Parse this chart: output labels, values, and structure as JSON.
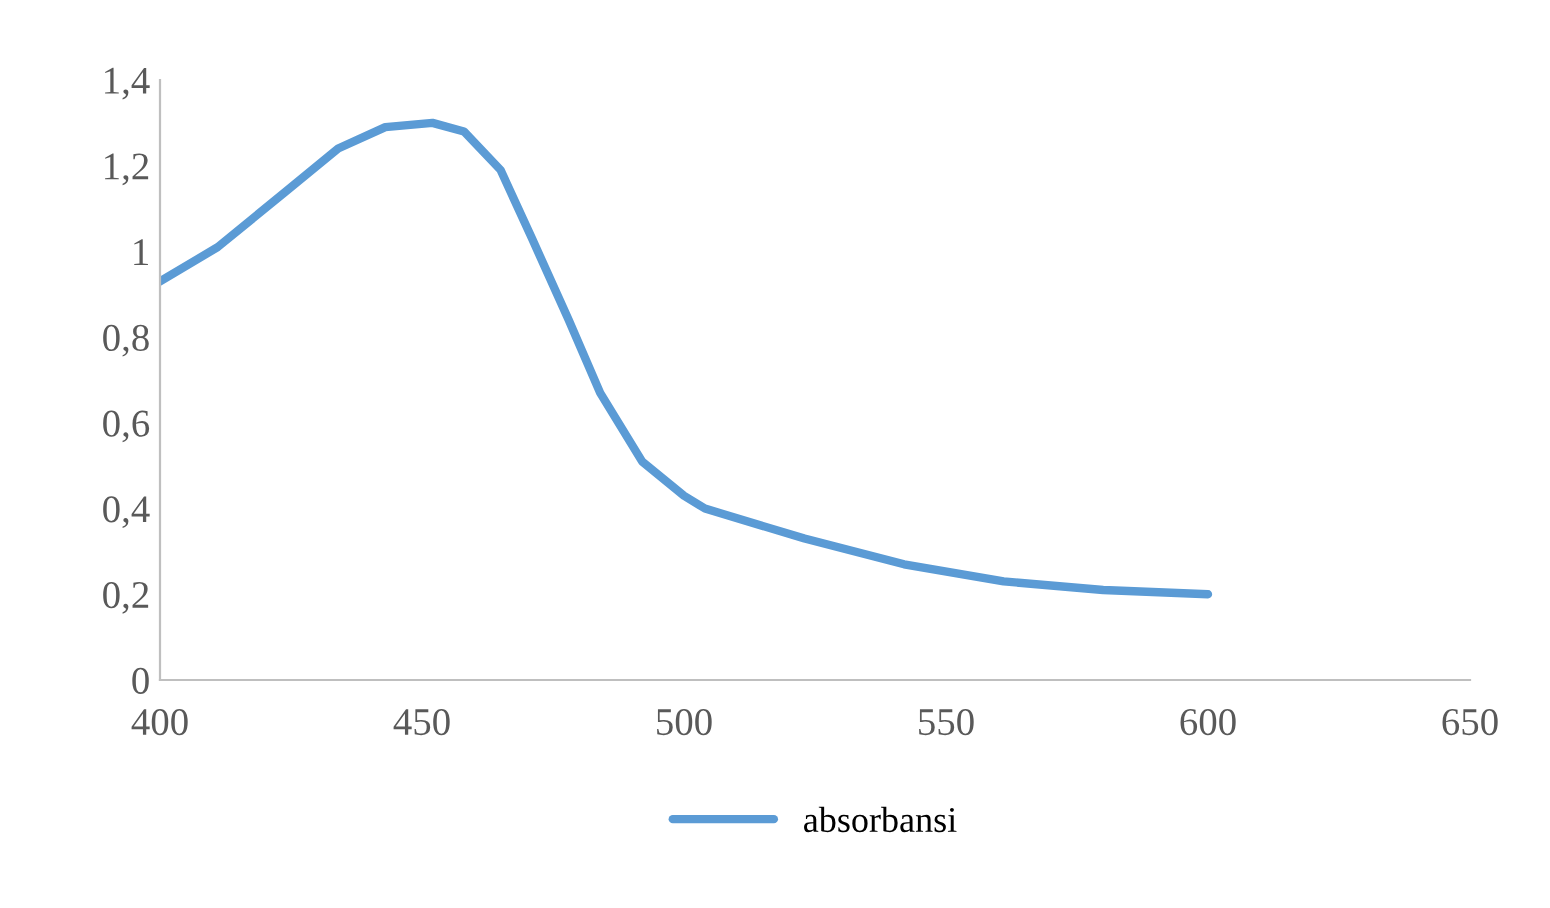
{
  "chart_data": {
    "type": "line",
    "x": [
      400,
      411,
      424,
      434,
      443,
      452,
      458,
      465,
      471,
      478,
      484,
      492,
      500,
      504,
      523,
      542,
      561,
      580,
      600
    ],
    "series": [
      {
        "name": "absorbansi",
        "color": "#5b9bd5",
        "values": [
          0.93,
          1.01,
          1.14,
          1.24,
          1.29,
          1.3,
          1.28,
          1.19,
          1.03,
          0.84,
          0.67,
          0.51,
          0.43,
          0.4,
          0.33,
          0.27,
          0.23,
          0.21,
          0.2
        ]
      }
    ],
    "xlim": [
      400,
      650
    ],
    "xticks": [
      400,
      450,
      500,
      550,
      600,
      650
    ],
    "ylim": [
      0,
      1.4
    ],
    "yticks": [
      {
        "value": 0,
        "label": "0"
      },
      {
        "value": 0.2,
        "label": "0,2"
      },
      {
        "value": 0.4,
        "label": "0,4"
      },
      {
        "value": 0.6,
        "label": "0,6"
      },
      {
        "value": 0.8,
        "label": "0,8"
      },
      {
        "value": 1,
        "label": "1"
      },
      {
        "value": 1.2,
        "label": "1,2"
      },
      {
        "value": 1.4,
        "label": "1,4"
      }
    ],
    "grid": false,
    "legend": "bottom",
    "marker": "none",
    "line_style": "solid"
  }
}
